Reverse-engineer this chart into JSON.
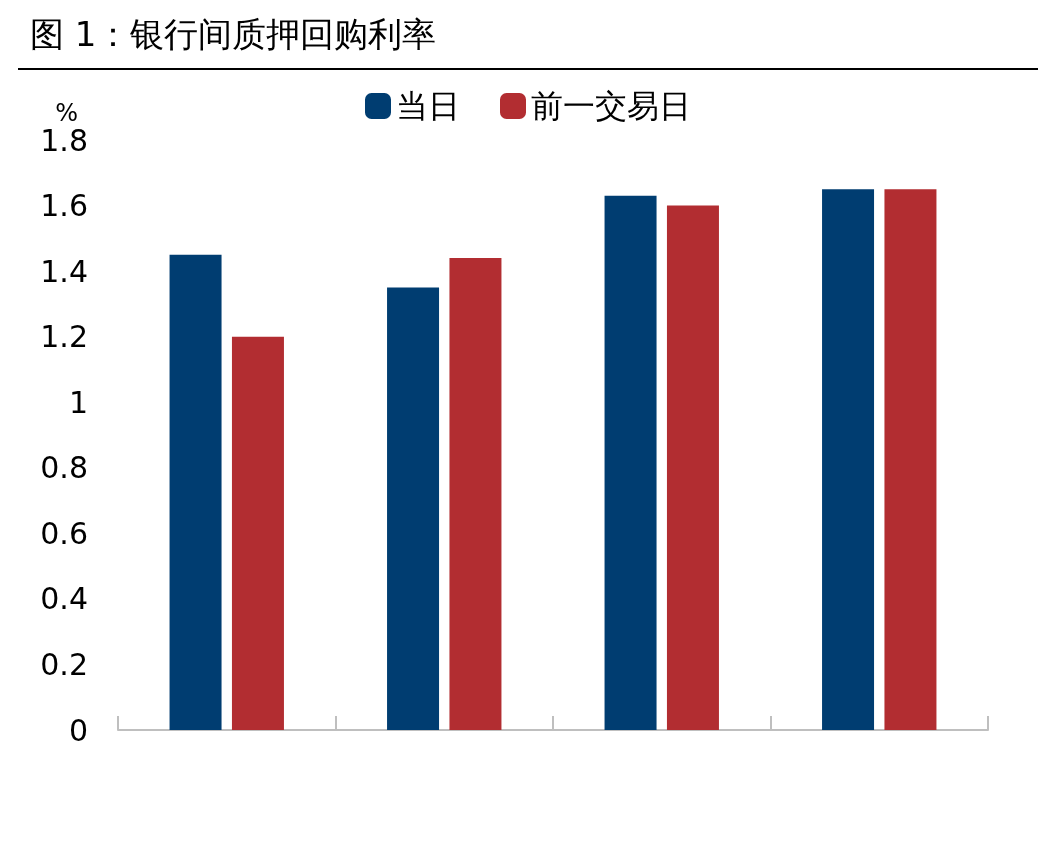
{
  "chart_data": {
    "type": "bar",
    "title": "图 1：银行间质押回购利率",
    "ylabel": "%",
    "categories": [
      null,
      null,
      null,
      null
    ],
    "series": [
      {
        "name": "当日",
        "color": "#003d71",
        "values": [
          1.45,
          1.35,
          1.63,
          1.65
        ]
      },
      {
        "name": "前一交易日",
        "color": "#b22d31",
        "values": [
          1.2,
          1.44,
          1.6,
          1.65
        ]
      }
    ],
    "ylim": [
      0,
      1.8
    ],
    "yticks": [
      0,
      0.2,
      0.4,
      0.6,
      0.8,
      1,
      1.2,
      1.4,
      1.6,
      1.8
    ],
    "grid": false,
    "legend": "top"
  }
}
